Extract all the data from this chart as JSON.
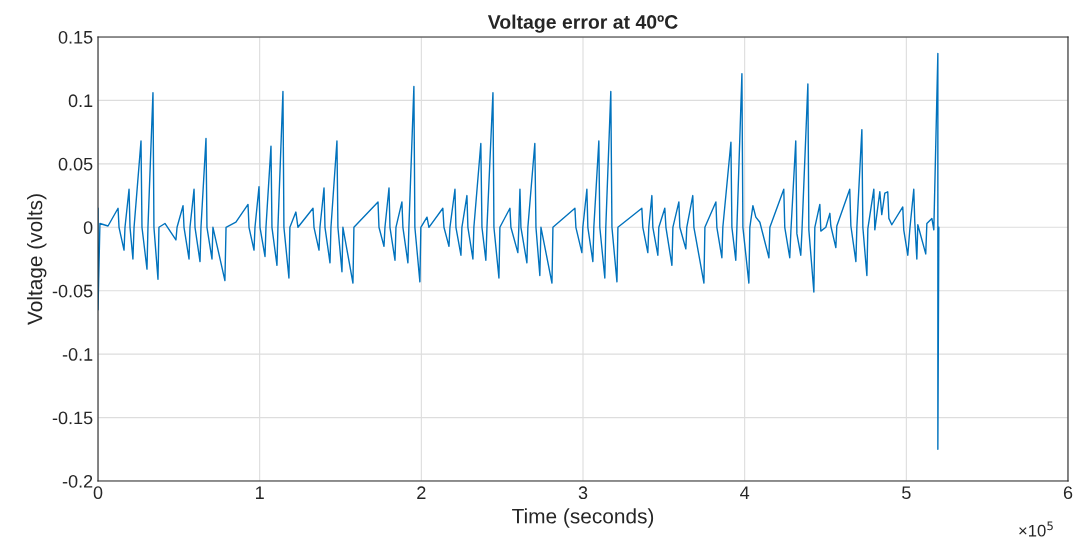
{
  "chart_data": {
    "type": "line",
    "title": "Voltage error at 40ºC",
    "xlabel": "Time (seconds)",
    "ylabel": "Voltage (volts)",
    "annotations": [
      "×10$^{5}$"
    ],
    "xlim": [
      0,
      6
    ],
    "xticks": [
      0,
      1,
      2,
      3,
      4,
      5,
      6
    ],
    "ylim": [
      -0.2,
      0.15
    ],
    "yticks": [
      -0.2,
      -0.15,
      -0.1,
      -0.05,
      0,
      0.05,
      0.1,
      0.15
    ],
    "grid": true,
    "legend": false,
    "marker": "none",
    "line_style": "solid",
    "series": [
      {
        "color": "#0072bd",
        "x": [
          0,
          0,
          0.012,
          0.062,
          0.124,
          0.13,
          0.161,
          0.167,
          0.192,
          0.198,
          0.216,
          0.223,
          0.266,
          0.272,
          0.303,
          0.309,
          0.34,
          0.346,
          0.371,
          0.377,
          0.414,
          0.482,
          0.489,
          0.526,
          0.532,
          0.563,
          0.569,
          0.594,
          0.6,
          0.631,
          0.637,
          0.668,
          0.674,
          0.705,
          0.711,
          0.785,
          0.792,
          0.853,
          0.928,
          0.934,
          0.965,
          0.971,
          0.996,
          1.002,
          1.033,
          1.039,
          1.07,
          1.076,
          1.107,
          1.113,
          1.144,
          1.15,
          1.181,
          1.187,
          1.224,
          1.237,
          1.33,
          1.336,
          1.367,
          1.373,
          1.398,
          1.404,
          1.435,
          1.441,
          1.478,
          1.484,
          1.509,
          1.515,
          1.577,
          1.583,
          1.732,
          1.738,
          1.769,
          1.775,
          1.8,
          1.806,
          1.837,
          1.843,
          1.88,
          1.886,
          1.917,
          1.923,
          1.954,
          1.96,
          1.991,
          1.997,
          2.035,
          2.047,
          2.133,
          2.14,
          2.171,
          2.177,
          2.208,
          2.214,
          2.245,
          2.251,
          2.282,
          2.288,
          2.319,
          2.325,
          2.368,
          2.375,
          2.399,
          2.406,
          2.443,
          2.449,
          2.48,
          2.486,
          2.548,
          2.554,
          2.597,
          2.603,
          2.61,
          2.616,
          2.653,
          2.659,
          2.702,
          2.709,
          2.733,
          2.74,
          2.808,
          2.814,
          2.95,
          2.956,
          2.993,
          2.999,
          3.024,
          3.03,
          3.061,
          3.067,
          3.098,
          3.104,
          3.135,
          3.141,
          3.172,
          3.179,
          3.21,
          3.216,
          3.364,
          3.37,
          3.401,
          3.407,
          3.426,
          3.432,
          3.463,
          3.469,
          3.506,
          3.513,
          3.55,
          3.556,
          3.593,
          3.599,
          3.636,
          3.642,
          3.679,
          3.686,
          3.748,
          3.754,
          3.822,
          3.828,
          3.859,
          3.865,
          3.915,
          3.921,
          3.945,
          3.952,
          3.983,
          3.989,
          4.026,
          4.032,
          4.051,
          4.069,
          4.094,
          4.15,
          4.156,
          4.242,
          4.248,
          4.279,
          4.286,
          4.316,
          4.323,
          4.347,
          4.354,
          4.391,
          4.397,
          4.428,
          4.434,
          4.465,
          4.471,
          4.502,
          4.527,
          4.533,
          4.564,
          4.57,
          4.65,
          4.657,
          4.688,
          4.694,
          4.725,
          4.731,
          4.756,
          4.762,
          4.799,
          4.805,
          4.836,
          4.848,
          4.867,
          4.885,
          4.892,
          4.91,
          4.978,
          4.984,
          5.009,
          5.022,
          5.046,
          5.052,
          5.065,
          5.071,
          5.12,
          5.127,
          5.158,
          5.17,
          5.195,
          5.195,
          5.201
        ],
        "values": [
          0.015,
          -0.065,
          0.003,
          0.001,
          0.015,
          0,
          -0.018,
          0,
          0.03,
          0,
          -0.025,
          0,
          0.068,
          0,
          -0.033,
          0,
          0.106,
          0,
          -0.041,
          0,
          0.003,
          -0.01,
          0,
          0.017,
          0,
          -0.025,
          0,
          0.03,
          0,
          -0.027,
          0,
          0.07,
          0,
          -0.025,
          0,
          -0.042,
          0,
          0.004,
          0.018,
          0,
          -0.018,
          0,
          0.032,
          0,
          -0.023,
          0,
          0.064,
          0,
          -0.03,
          0,
          0.107,
          0,
          -0.04,
          0,
          0.012,
          0,
          0.015,
          0,
          -0.018,
          0,
          0.031,
          0,
          -0.028,
          0,
          0.068,
          0,
          -0.035,
          0,
          -0.044,
          0,
          0.02,
          0,
          -0.015,
          0,
          0.031,
          0,
          -0.026,
          0,
          0.02,
          0,
          -0.028,
          0,
          0.111,
          0,
          -0.043,
          0,
          0.008,
          0,
          0.015,
          0,
          -0.015,
          0,
          0.03,
          0,
          -0.022,
          0,
          0.025,
          0,
          -0.025,
          0,
          0.066,
          0,
          -0.026,
          0,
          0.106,
          0,
          -0.04,
          0,
          0.015,
          0,
          -0.02,
          0,
          0.03,
          0,
          -0.028,
          0,
          0.066,
          0,
          -0.038,
          0,
          -0.044,
          0,
          0.015,
          0,
          -0.02,
          0,
          0.03,
          0,
          -0.027,
          0,
          0.068,
          0,
          -0.04,
          0,
          0.107,
          0,
          -0.043,
          0,
          0.015,
          0,
          -0.02,
          0,
          0.025,
          0,
          -0.022,
          0,
          0.015,
          0,
          -0.03,
          0,
          0.02,
          0,
          -0.017,
          0,
          0.025,
          0,
          -0.044,
          0,
          0.02,
          0,
          -0.024,
          0,
          0.067,
          0,
          -0.026,
          0,
          0.121,
          0,
          -0.044,
          0,
          0.017,
          0.008,
          0.004,
          -0.024,
          0,
          0.03,
          0,
          -0.024,
          -0.003,
          0.068,
          -0.005,
          -0.022,
          -0.004,
          0.113,
          -0.002,
          -0.051,
          0,
          0.018,
          -0.003,
          0,
          0.011,
          0.001,
          -0.016,
          0.001,
          0.03,
          0.001,
          -0.027,
          0,
          0.077,
          0,
          -0.038,
          -0.001,
          0.03,
          -0.002,
          0.028,
          0.01,
          0.027,
          0.028,
          0.007,
          0.002,
          0.016,
          -0.002,
          -0.022,
          -0.001,
          0.03,
          0.005,
          -0.025,
          0.002,
          -0.021,
          0.003,
          0.007,
          -0.002,
          0.137,
          -0.175,
          0
        ]
      }
    ]
  }
}
